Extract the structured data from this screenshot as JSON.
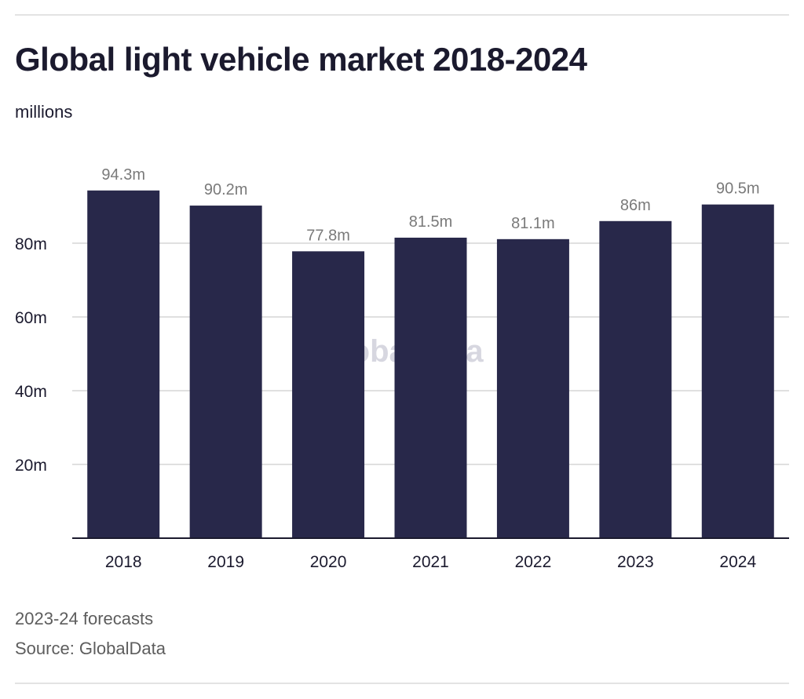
{
  "header": {
    "title": "Global light vehicle market 2018-2024",
    "subtitle": "millions"
  },
  "footer": {
    "note": "2023-24 forecasts",
    "source": "Source: GlobalData"
  },
  "watermark": "GlobalData",
  "colors": {
    "bar": "#28284a",
    "grid": "#e0e0e0",
    "axis": "#1b1a2e",
    "data_label": "#7a7a7a"
  },
  "chart_data": {
    "type": "bar",
    "title": "Global light vehicle market 2018-2024",
    "subtitle": "millions",
    "xlabel": "",
    "ylabel": "",
    "categories": [
      "2018",
      "2019",
      "2020",
      "2021",
      "2022",
      "2023",
      "2024"
    ],
    "values": [
      94.3,
      90.2,
      77.8,
      81.5,
      81.1,
      86,
      90.5
    ],
    "data_labels": [
      "94.3m",
      "90.2m",
      "77.8m",
      "81.5m",
      "81.1m",
      "86m",
      "90.5m"
    ],
    "ylim": [
      0,
      100
    ],
    "yticks": [
      20,
      40,
      60,
      80
    ],
    "ytick_labels": [
      "20m",
      "40m",
      "60m",
      "80m"
    ],
    "grid": true,
    "legend": "none",
    "notes": [
      "2023-24 forecasts",
      "Source: GlobalData"
    ]
  }
}
